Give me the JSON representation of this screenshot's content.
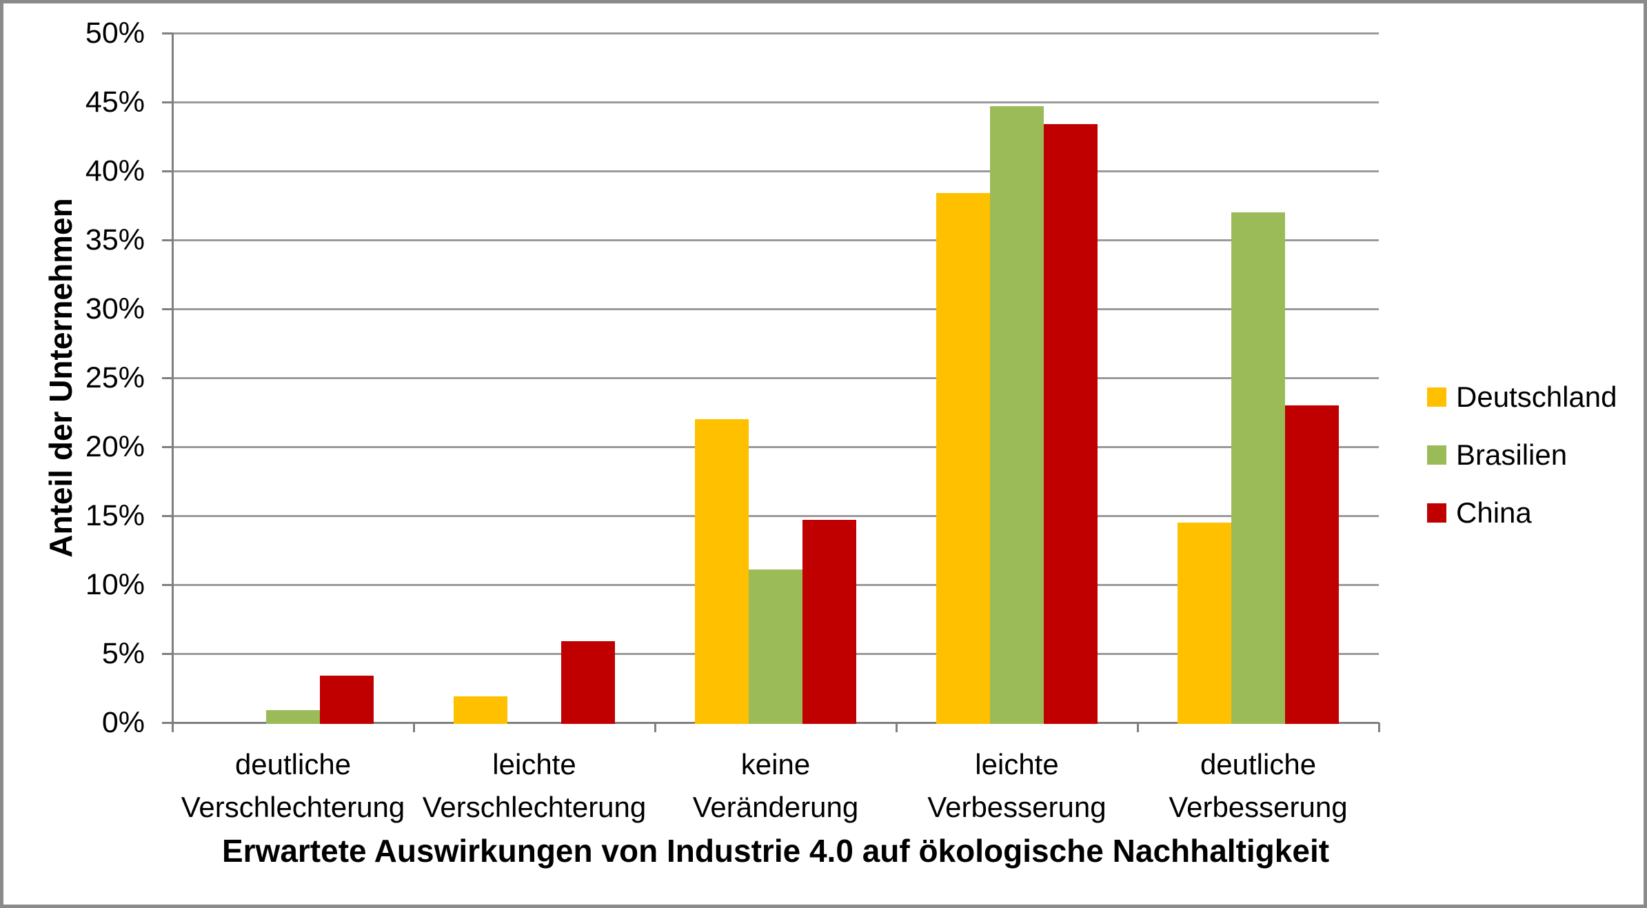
{
  "chart_data": {
    "type": "bar",
    "title": "",
    "xlabel": "Erwartete Auswirkungen von Industrie 4.0 auf ökologische Nachhaltigkeit",
    "ylabel": "Anteil der Unternehmen",
    "categories": [
      "deutliche\nVerschlechterung",
      "leichte\nVerschlechterung",
      "keine\nVeränderung",
      "leichte\nVerbesserung",
      "deutliche\nVerbesserung"
    ],
    "series": [
      {
        "name": "Deutschland",
        "color": "#FFC000",
        "values": [
          0,
          1.9,
          22.0,
          38.4,
          14.5
        ]
      },
      {
        "name": "Brasilien",
        "color": "#9BBB59",
        "values": [
          0.9,
          0,
          11.1,
          44.7,
          37.0
        ]
      },
      {
        "name": "China",
        "color": "#C00000",
        "values": [
          3.4,
          5.9,
          14.7,
          43.4,
          23.0
        ]
      }
    ],
    "y_ticks": [
      "0%",
      "5%",
      "10%",
      "15%",
      "20%",
      "25%",
      "30%",
      "35%",
      "40%",
      "45%",
      "50%"
    ],
    "ylim": [
      0,
      50
    ],
    "grid": "horizontal",
    "legend_position": "right"
  },
  "colors": {
    "gridline": "#9A9A9A",
    "axis": "#7F7F7F",
    "frame_border": "#8A8A8A",
    "background": "#FFFFFF",
    "text": "#000000"
  }
}
